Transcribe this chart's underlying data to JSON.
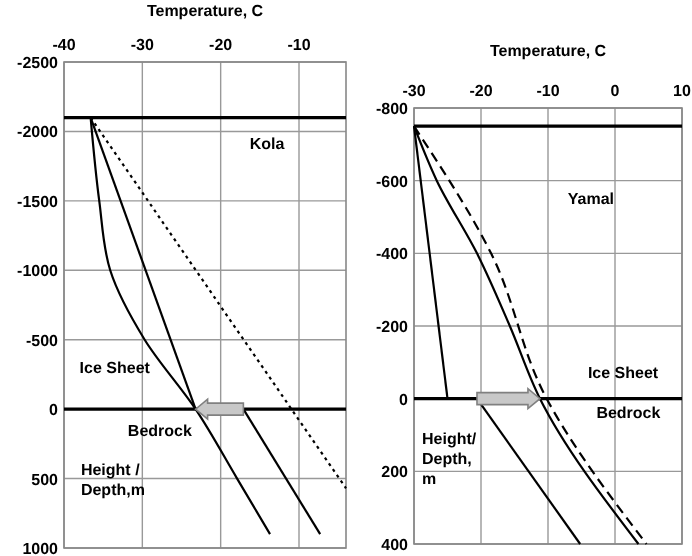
{
  "chart_data": [
    {
      "type": "line",
      "xlabel": "Temperature, C",
      "xlim": [
        -40,
        -4
      ],
      "xticks": [
        -40,
        -30,
        -20,
        -10
      ],
      "ylim": [
        1000,
        -2500
      ],
      "yticks": [
        -2500,
        -2000,
        -1500,
        -1000,
        -500,
        0,
        500,
        1000
      ],
      "grid": true,
      "annotations": [
        "Kola",
        "Ice Sheet",
        "Bedrock",
        "Height /\nDepth,m"
      ],
      "ref_lines": [
        {
          "axis": "y",
          "value": -2100,
          "color": "#000000"
        },
        {
          "axis": "y",
          "value": 0,
          "color": "#000000"
        }
      ],
      "series": [
        {
          "color": "#000000",
          "line_style": "solid",
          "marker": "none",
          "x": [
            -36.6,
            -35.5,
            -34.1,
            -29.7,
            -23.2,
            -17.9,
            -13.7
          ],
          "values": [
            -2100,
            -1500,
            -1000,
            -500,
            0,
            500,
            900
          ]
        },
        {
          "color": "#000000",
          "line_style": "solid",
          "x": [
            -36.6,
            -23.2
          ],
          "values": [
            -2100,
            0
          ]
        },
        {
          "color": "#000000",
          "line_style": "solid",
          "x": [
            -17.1,
            -7.3
          ],
          "values": [
            0,
            900
          ]
        },
        {
          "color": "#000000",
          "line_style": "dotted",
          "marker": "none",
          "x": [
            -36.6,
            -4
          ],
          "values": [
            -2100,
            570
          ]
        }
      ]
    },
    {
      "type": "line",
      "xlabel": "Temperature, C",
      "xlim": [
        -30,
        10
      ],
      "xticks": [
        -30,
        -20,
        -10,
        0,
        10
      ],
      "ylim": [
        400,
        -800
      ],
      "yticks": [
        -800,
        -600,
        -400,
        -200,
        0,
        200,
        400
      ],
      "grid": true,
      "annotations": [
        "Yamal",
        "Ice Sheet",
        "Bedrock",
        "Height/\nDepth,\nm"
      ],
      "ref_lines": [
        {
          "axis": "y",
          "value": -750,
          "color": "#000000"
        },
        {
          "axis": "y",
          "value": 0,
          "color": "#000000"
        }
      ],
      "series": [
        {
          "color": "#000000",
          "line_style": "solid",
          "x": [
            -30,
            -25
          ],
          "values": [
            -750,
            0
          ]
        },
        {
          "color": "#000000",
          "line_style": "solid",
          "x": [
            -20.6,
            -5.2
          ],
          "values": [
            0,
            400
          ]
        },
        {
          "color": "#000000",
          "line_style": "solid",
          "marker": "none",
          "x": [
            -30,
            -26.6,
            -20.6,
            -15.7,
            -11.2,
            3.5
          ],
          "values": [
            -750,
            -600,
            -400,
            -200,
            0,
            400
          ]
        },
        {
          "color": "#000000",
          "line_style": "dashed",
          "marker": "none",
          "x": [
            -30,
            -18.5,
            -10.2,
            4.7
          ],
          "values": [
            -750,
            -400,
            0,
            400
          ]
        }
      ]
    }
  ]
}
